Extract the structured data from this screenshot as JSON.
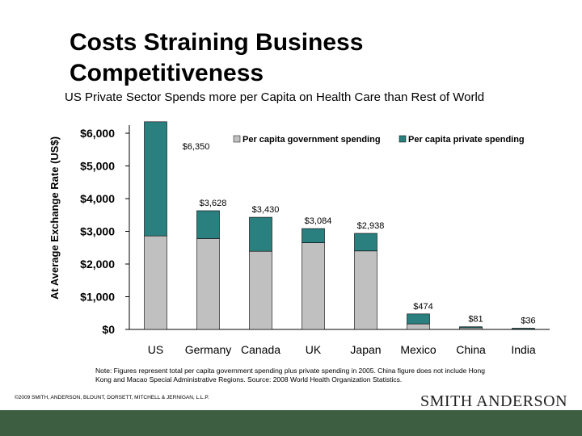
{
  "slide": {
    "title": "Costs Straining Business Competitiveness",
    "subtitle": "US Private Sector Spends more per Capita on Health Care than Rest of World",
    "note": "Note: Figures represent total per capita government spending plus private spending in 2005. China figure does not include Hong Kong and Macao Special Administrative Regions. Source: 2008 World Health Organization Statistics.",
    "copyright": "©2009 SMITH, ANDERSON, BLOUNT, DORSETT, MITCHELL & JERNIGAN, L.L.P.",
    "logo_text": "SMITH ANDERSON",
    "footer_color": "#3e5e41"
  },
  "chart_data": {
    "type": "bar",
    "stacked": true,
    "title": "",
    "ylabel": "At Average Exchange Rate (US$)",
    "xlabel": "",
    "ylim": [
      0,
      6000
    ],
    "yticks": [
      0,
      1000,
      2000,
      3000,
      4000,
      5000,
      6000
    ],
    "ytick_labels": [
      "$0",
      "$1,000",
      "$2,000",
      "$3,000",
      "$4,000",
      "$5,000",
      "$6,000"
    ],
    "categories": [
      "US",
      "Germany",
      "Canada",
      "UK",
      "Japan",
      "Mexico",
      "China",
      "India"
    ],
    "series": [
      {
        "name": "Per capita government spending",
        "color": "#c0c0c0",
        "values": [
          2860,
          2780,
          2390,
          2650,
          2400,
          170,
          50,
          10
        ]
      },
      {
        "name": "Per capita private spending",
        "color": "#2a7f7f",
        "values": [
          3490,
          850,
          1040,
          434,
          538,
          304,
          31,
          26
        ]
      }
    ],
    "totals_labels": [
      "$6,350",
      "$3,628",
      "$3,430",
      "$3,084",
      "$2,938",
      "$474",
      "$81",
      "$36"
    ],
    "grid": false,
    "legend_position": "top-right"
  }
}
